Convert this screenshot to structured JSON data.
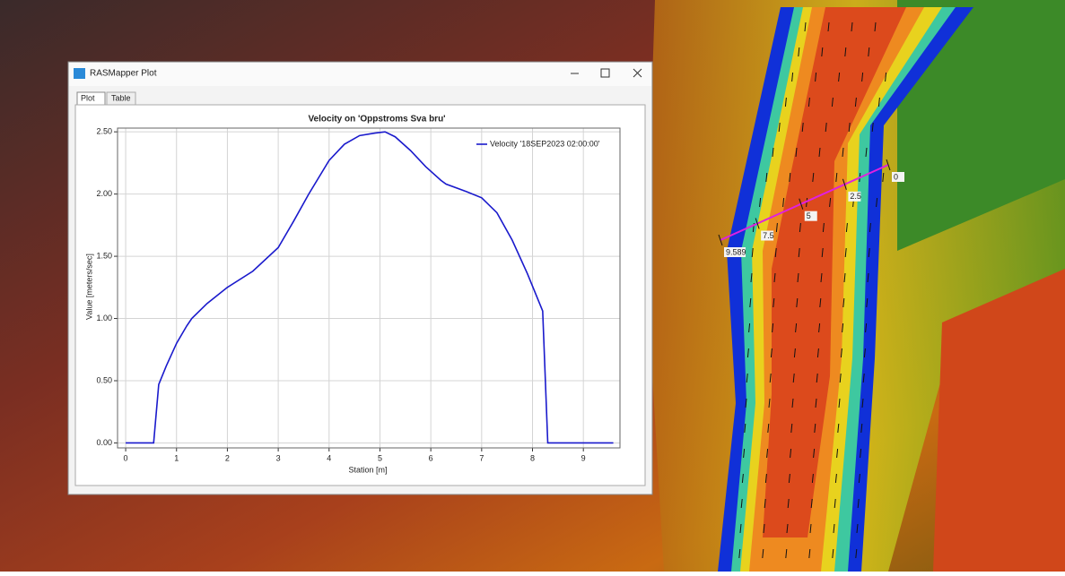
{
  "window": {
    "title": "RASMapper Plot",
    "tabs": [
      "Plot",
      "Table"
    ]
  },
  "chart_data": {
    "type": "line",
    "title": "Velocity on 'Oppstroms Sva bru'",
    "x_label": "Station [m]",
    "y_label": "Value [meters/sec]",
    "x": [
      0,
      0.55,
      0.65,
      0.8,
      1,
      1.2,
      1.3,
      1.6,
      2,
      2.5,
      3,
      3.3,
      3.6,
      4,
      4.3,
      4.6,
      4.9,
      5.1,
      5.3,
      5.6,
      5.9,
      6.2,
      6.3,
      6.7,
      7,
      7.3,
      7.6,
      7.9,
      8.2,
      8.3,
      9.589
    ],
    "series": [
      {
        "name": "Velocity '18SEP2023 02:00:00'",
        "color": "#1a1acc",
        "values": [
          0,
          0,
          0.47,
          0.62,
          0.8,
          0.94,
          1.0,
          1.12,
          1.25,
          1.38,
          1.57,
          1.78,
          2.0,
          2.27,
          2.4,
          2.47,
          2.49,
          2.5,
          2.46,
          2.35,
          2.22,
          2.11,
          2.08,
          2.02,
          1.97,
          1.85,
          1.63,
          1.36,
          1.06,
          0,
          0
        ]
      }
    ],
    "xlim": [
      -0.16,
      9.72
    ],
    "ylim": [
      -0.04,
      2.53
    ],
    "xticks": [
      0,
      1,
      2,
      3,
      4,
      5,
      6,
      7,
      8,
      9
    ],
    "yticks": [
      {
        "value": 0,
        "label": "0.00"
      },
      {
        "value": 0.5,
        "label": "0.50"
      },
      {
        "value": 1,
        "label": "1.00"
      },
      {
        "value": 1.5,
        "label": "1.50"
      },
      {
        "value": 2,
        "label": "2.00"
      },
      {
        "value": 2.5,
        "label": "2.50"
      }
    ],
    "grid": true,
    "legend": "upper right"
  },
  "map": {
    "profile_labels": [
      "0",
      "2.5",
      "5",
      "7.5",
      "9.589"
    ]
  }
}
